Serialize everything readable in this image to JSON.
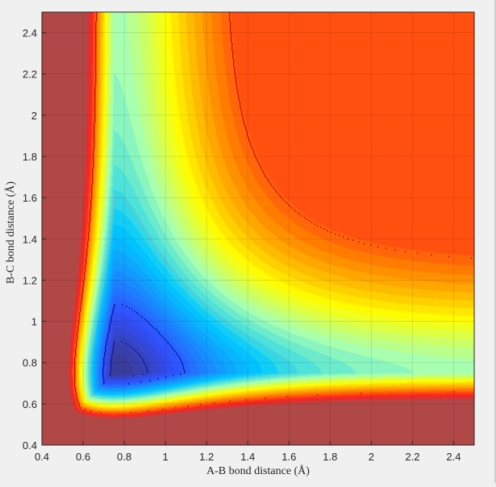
{
  "chart_data": {
    "type": "heatmap",
    "title": "",
    "xlabel": "A-B bond distance (Å)",
    "ylabel": "B-C bond distance (Å)",
    "xlim": [
      0.4,
      2.5
    ],
    "ylim": [
      0.4,
      2.5
    ],
    "x_ticks": [
      "0.4",
      "0.6",
      "0.8",
      "1",
      "1.2",
      "1.4",
      "1.6",
      "1.8",
      "2",
      "2.2",
      "2.4"
    ],
    "y_ticks": [
      "0.4",
      "0.6",
      "0.8",
      "1",
      "1.2",
      "1.4",
      "1.6",
      "1.8",
      "2",
      "2.2",
      "2.4"
    ],
    "grid": true,
    "colormap": "jet",
    "color_stops": [
      "#3a3c9a",
      "#3050ff",
      "#00c8ff",
      "#a8ffb0",
      "#ffff00",
      "#ff8000",
      "#ff2020",
      "#b04848"
    ],
    "surface": "filled contour of a symmetric potential energy surface; minimum valleys near A-B 0.75 Å (vertical) and B-C 0.75 Å (horizontal), rising toward the lower-left corner and the upper-right plateau"
  }
}
